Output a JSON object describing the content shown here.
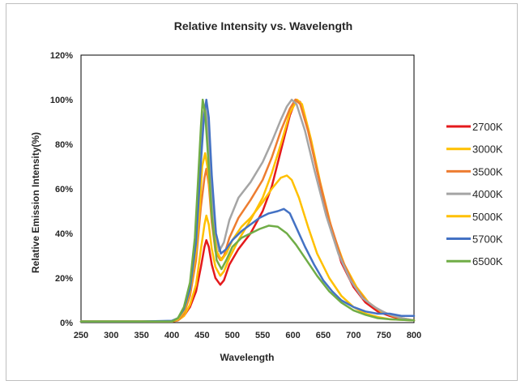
{
  "chart_data": {
    "type": "line",
    "title": "Relative Intensity vs. Wavelength",
    "xlabel": "Wavelength",
    "ylabel": "Relative Emission Intensity(%)",
    "xlim": [
      250,
      800
    ],
    "ylim": [
      0,
      120
    ],
    "x_ticks": [
      "250",
      "300",
      "350",
      "400",
      "450",
      "500",
      "550",
      "600",
      "650",
      "700",
      "750",
      "800"
    ],
    "y_ticks": [
      "0%",
      "20%",
      "40%",
      "60%",
      "80%",
      "100%",
      "120%"
    ],
    "grid": false,
    "legend_position": "right",
    "series": [
      {
        "name": "2700K",
        "color": "#e41a1c",
        "points": [
          [
            250,
            0.5
          ],
          [
            400,
            0.5
          ],
          [
            410,
            1
          ],
          [
            420,
            3
          ],
          [
            430,
            7
          ],
          [
            440,
            14
          ],
          [
            448,
            25
          ],
          [
            454,
            34
          ],
          [
            457,
            37
          ],
          [
            461,
            34
          ],
          [
            466,
            26
          ],
          [
            472,
            20
          ],
          [
            480,
            17
          ],
          [
            486,
            19
          ],
          [
            495,
            26
          ],
          [
            510,
            33
          ],
          [
            530,
            40
          ],
          [
            550,
            50
          ],
          [
            565,
            61
          ],
          [
            580,
            77
          ],
          [
            595,
            93
          ],
          [
            605,
            100
          ],
          [
            612,
            99
          ],
          [
            625,
            87
          ],
          [
            640,
            68
          ],
          [
            660,
            45
          ],
          [
            680,
            27
          ],
          [
            700,
            16
          ],
          [
            720,
            9
          ],
          [
            740,
            5
          ],
          [
            760,
            3
          ],
          [
            780,
            1.5
          ],
          [
            800,
            1
          ]
        ]
      },
      {
        "name": "3000K",
        "color": "#ffc000",
        "points": [
          [
            250,
            0.5
          ],
          [
            400,
            0.5
          ],
          [
            410,
            1
          ],
          [
            420,
            3
          ],
          [
            430,
            8
          ],
          [
            440,
            17
          ],
          [
            448,
            33
          ],
          [
            454,
            44
          ],
          [
            457,
            48
          ],
          [
            461,
            44
          ],
          [
            466,
            33
          ],
          [
            472,
            25
          ],
          [
            480,
            21
          ],
          [
            486,
            23
          ],
          [
            495,
            29
          ],
          [
            510,
            37
          ],
          [
            530,
            46
          ],
          [
            550,
            56
          ],
          [
            565,
            67
          ],
          [
            580,
            80
          ],
          [
            595,
            94
          ],
          [
            607,
            100
          ],
          [
            615,
            98
          ],
          [
            630,
            82
          ],
          [
            645,
            63
          ],
          [
            665,
            41
          ],
          [
            685,
            26
          ],
          [
            705,
            16
          ],
          [
            725,
            9
          ],
          [
            745,
            5
          ],
          [
            765,
            3
          ],
          [
            785,
            1.5
          ],
          [
            800,
            1
          ]
        ]
      },
      {
        "name": "3500K",
        "color": "#ed7d31",
        "points": [
          [
            250,
            0.5
          ],
          [
            400,
            0.5
          ],
          [
            410,
            1
          ],
          [
            420,
            4
          ],
          [
            430,
            12
          ],
          [
            440,
            28
          ],
          [
            448,
            52
          ],
          [
            454,
            65
          ],
          [
            457,
            69
          ],
          [
            461,
            62
          ],
          [
            466,
            45
          ],
          [
            472,
            32
          ],
          [
            480,
            28
          ],
          [
            486,
            30
          ],
          [
            495,
            38
          ],
          [
            510,
            47
          ],
          [
            530,
            55
          ],
          [
            550,
            64
          ],
          [
            565,
            74
          ],
          [
            580,
            86
          ],
          [
            595,
            96
          ],
          [
            604,
            100
          ],
          [
            612,
            98
          ],
          [
            625,
            86
          ],
          [
            640,
            68
          ],
          [
            660,
            46
          ],
          [
            680,
            29
          ],
          [
            700,
            17
          ],
          [
            720,
            10
          ],
          [
            740,
            6
          ],
          [
            760,
            3.5
          ],
          [
            780,
            2
          ],
          [
            800,
            1
          ]
        ]
      },
      {
        "name": "4000K",
        "color": "#a5a5a5",
        "points": [
          [
            250,
            0.5
          ],
          [
            400,
            0.5
          ],
          [
            410,
            1.5
          ],
          [
            420,
            5
          ],
          [
            430,
            16
          ],
          [
            440,
            40
          ],
          [
            448,
            78
          ],
          [
            452,
            93
          ],
          [
            455,
            97
          ],
          [
            458,
            92
          ],
          [
            463,
            70
          ],
          [
            470,
            42
          ],
          [
            478,
            32
          ],
          [
            486,
            36
          ],
          [
            495,
            46
          ],
          [
            510,
            56
          ],
          [
            530,
            63
          ],
          [
            550,
            72
          ],
          [
            565,
            81
          ],
          [
            580,
            91
          ],
          [
            590,
            97
          ],
          [
            598,
            100
          ],
          [
            606,
            98
          ],
          [
            620,
            86
          ],
          [
            635,
            69
          ],
          [
            655,
            48
          ],
          [
            675,
            31
          ],
          [
            695,
            19
          ],
          [
            715,
            11
          ],
          [
            735,
            7
          ],
          [
            755,
            4
          ],
          [
            780,
            2
          ],
          [
            800,
            1
          ]
        ]
      },
      {
        "name": "5000K",
        "color": "#ffc000",
        "points": [
          [
            250,
            0.5
          ],
          [
            400,
            0.5
          ],
          [
            410,
            1.5
          ],
          [
            420,
            5
          ],
          [
            430,
            14
          ],
          [
            440,
            32
          ],
          [
            446,
            52
          ],
          [
            450,
            70
          ],
          [
            455,
            76
          ],
          [
            460,
            68
          ],
          [
            466,
            48
          ],
          [
            474,
            32
          ],
          [
            482,
            28
          ],
          [
            490,
            31
          ],
          [
            500,
            37
          ],
          [
            515,
            43
          ],
          [
            530,
            47
          ],
          [
            550,
            54
          ],
          [
            565,
            60
          ],
          [
            580,
            65
          ],
          [
            590,
            66
          ],
          [
            598,
            64
          ],
          [
            610,
            56
          ],
          [
            625,
            43
          ],
          [
            640,
            31
          ],
          [
            660,
            20
          ],
          [
            680,
            12
          ],
          [
            700,
            7
          ],
          [
            720,
            4
          ],
          [
            740,
            2.5
          ],
          [
            760,
            1.5
          ],
          [
            800,
            1
          ]
        ]
      },
      {
        "name": "5700K",
        "color": "#4472c4",
        "points": [
          [
            250,
            0.5
          ],
          [
            300,
            0.5
          ],
          [
            350,
            0.5
          ],
          [
            400,
            0.8
          ],
          [
            410,
            2
          ],
          [
            420,
            6
          ],
          [
            430,
            15
          ],
          [
            440,
            36
          ],
          [
            448,
            72
          ],
          [
            453,
            92
          ],
          [
            457,
            100
          ],
          [
            461,
            92
          ],
          [
            466,
            66
          ],
          [
            473,
            40
          ],
          [
            481,
            31
          ],
          [
            490,
            33
          ],
          [
            500,
            37
          ],
          [
            515,
            41
          ],
          [
            530,
            44
          ],
          [
            545,
            47
          ],
          [
            560,
            49
          ],
          [
            575,
            50
          ],
          [
            585,
            51
          ],
          [
            595,
            49
          ],
          [
            605,
            43
          ],
          [
            620,
            34
          ],
          [
            635,
            26
          ],
          [
            650,
            19
          ],
          [
            665,
            14
          ],
          [
            680,
            10
          ],
          [
            700,
            7
          ],
          [
            720,
            5
          ],
          [
            740,
            4
          ],
          [
            760,
            4
          ],
          [
            780,
            3
          ],
          [
            800,
            3
          ]
        ]
      },
      {
        "name": "6500K",
        "color": "#70ad47",
        "points": [
          [
            250,
            0.5
          ],
          [
            400,
            0.5
          ],
          [
            410,
            2
          ],
          [
            420,
            7
          ],
          [
            430,
            18
          ],
          [
            438,
            38
          ],
          [
            443,
            62
          ],
          [
            448,
            88
          ],
          [
            451,
            100
          ],
          [
            455,
            94
          ],
          [
            460,
            74
          ],
          [
            466,
            48
          ],
          [
            474,
            28
          ],
          [
            482,
            24
          ],
          [
            490,
            28
          ],
          [
            500,
            34
          ],
          [
            515,
            38
          ],
          [
            530,
            40
          ],
          [
            545,
            42
          ],
          [
            560,
            43.5
          ],
          [
            575,
            43
          ],
          [
            590,
            40
          ],
          [
            605,
            35
          ],
          [
            620,
            29
          ],
          [
            640,
            21
          ],
          [
            660,
            14
          ],
          [
            680,
            9
          ],
          [
            700,
            5.5
          ],
          [
            720,
            3.5
          ],
          [
            740,
            2
          ],
          [
            760,
            1.5
          ],
          [
            800,
            1
          ]
        ]
      }
    ]
  }
}
